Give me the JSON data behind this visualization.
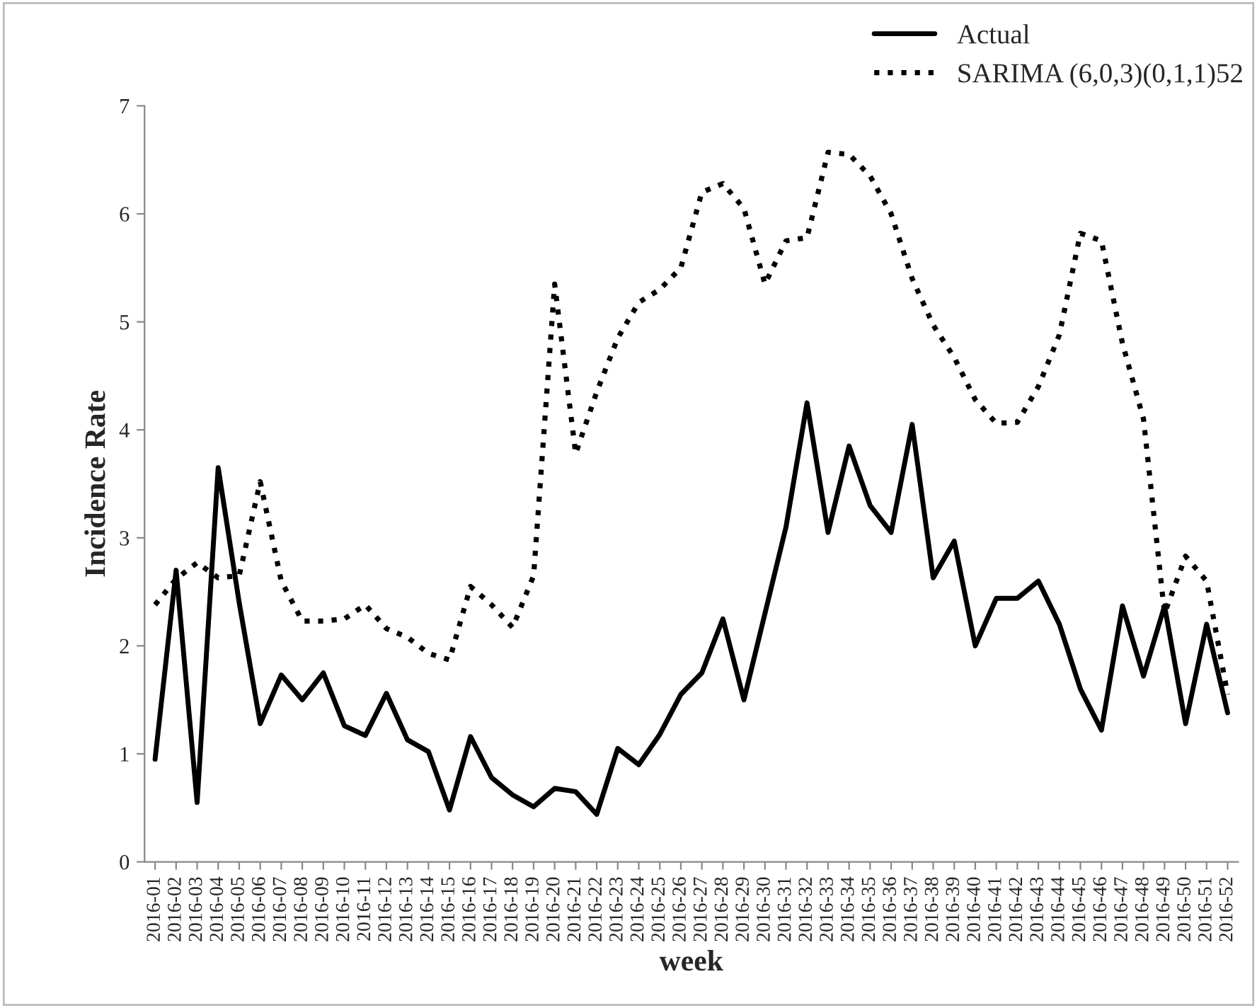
{
  "chart_data": {
    "type": "line",
    "xlabel": "week",
    "ylabel": "Incidence Rate",
    "categories": [
      "2016-01",
      "2016-02",
      "2016-03",
      "2016-04",
      "2016-05",
      "2016-06",
      "2016-07",
      "2016-08",
      "2016-09",
      "2016-10",
      "2016-11",
      "2016-12",
      "2016-13",
      "2016-14",
      "2016-15",
      "2016-16",
      "2016-17",
      "2016-18",
      "2016-19",
      "2016-20",
      "2016-21",
      "2016-22",
      "2016-23",
      "2016-24",
      "2016-25",
      "2016-26",
      "2016-27",
      "2016-28",
      "2016-29",
      "2016-30",
      "2016-31",
      "2016-32",
      "2016-33",
      "2016-34",
      "2016-35",
      "2016-36",
      "2016-37",
      "2016-38",
      "2016-39",
      "2016-40",
      "2016-41",
      "2016-42",
      "2016-43",
      "2016-44",
      "2016-45",
      "2016-46",
      "2016-47",
      "2016-48",
      "2016-49",
      "2016-50",
      "2016-51",
      "2016-52"
    ],
    "series": [
      {
        "name": "Actual",
        "color": "#000000",
        "line_style": "solid",
        "values": [
          0.95,
          2.7,
          0.55,
          3.65,
          2.4,
          1.28,
          1.73,
          1.5,
          1.75,
          1.26,
          1.17,
          1.56,
          1.13,
          1.02,
          0.48,
          1.16,
          0.78,
          0.62,
          0.51,
          0.68,
          0.65,
          0.44,
          1.05,
          0.9,
          1.18,
          1.55,
          1.75,
          2.25,
          1.5,
          2.3,
          3.1,
          4.25,
          3.05,
          3.85,
          3.3,
          3.05,
          4.05,
          2.63,
          2.97,
          2.0,
          2.44,
          2.44,
          2.6,
          2.2,
          1.6,
          1.22,
          2.37,
          1.72,
          2.37,
          1.28,
          2.2,
          1.38
        ]
      },
      {
        "name": "SARIMA (6,0,3)(0,1,1)52",
        "color": "#000000",
        "line_style": "dotted",
        "values": [
          2.38,
          2.62,
          2.77,
          2.63,
          2.65,
          3.52,
          2.6,
          2.23,
          2.23,
          2.25,
          2.38,
          2.16,
          2.08,
          1.93,
          1.87,
          2.55,
          2.38,
          2.17,
          2.65,
          5.35,
          3.78,
          4.35,
          4.85,
          5.18,
          5.3,
          5.5,
          6.2,
          6.28,
          6.05,
          5.35,
          5.75,
          5.78,
          6.57,
          6.55,
          6.35,
          6.0,
          5.4,
          4.97,
          4.67,
          4.28,
          4.06,
          4.07,
          4.4,
          4.88,
          5.82,
          5.75,
          4.8,
          4.1,
          2.3,
          2.83,
          2.6,
          1.55
        ]
      }
    ],
    "ylim": [
      0,
      7
    ],
    "yticks": [
      0,
      1,
      2,
      3,
      4,
      5,
      6,
      7
    ],
    "grid": false,
    "legend": "top right"
  }
}
